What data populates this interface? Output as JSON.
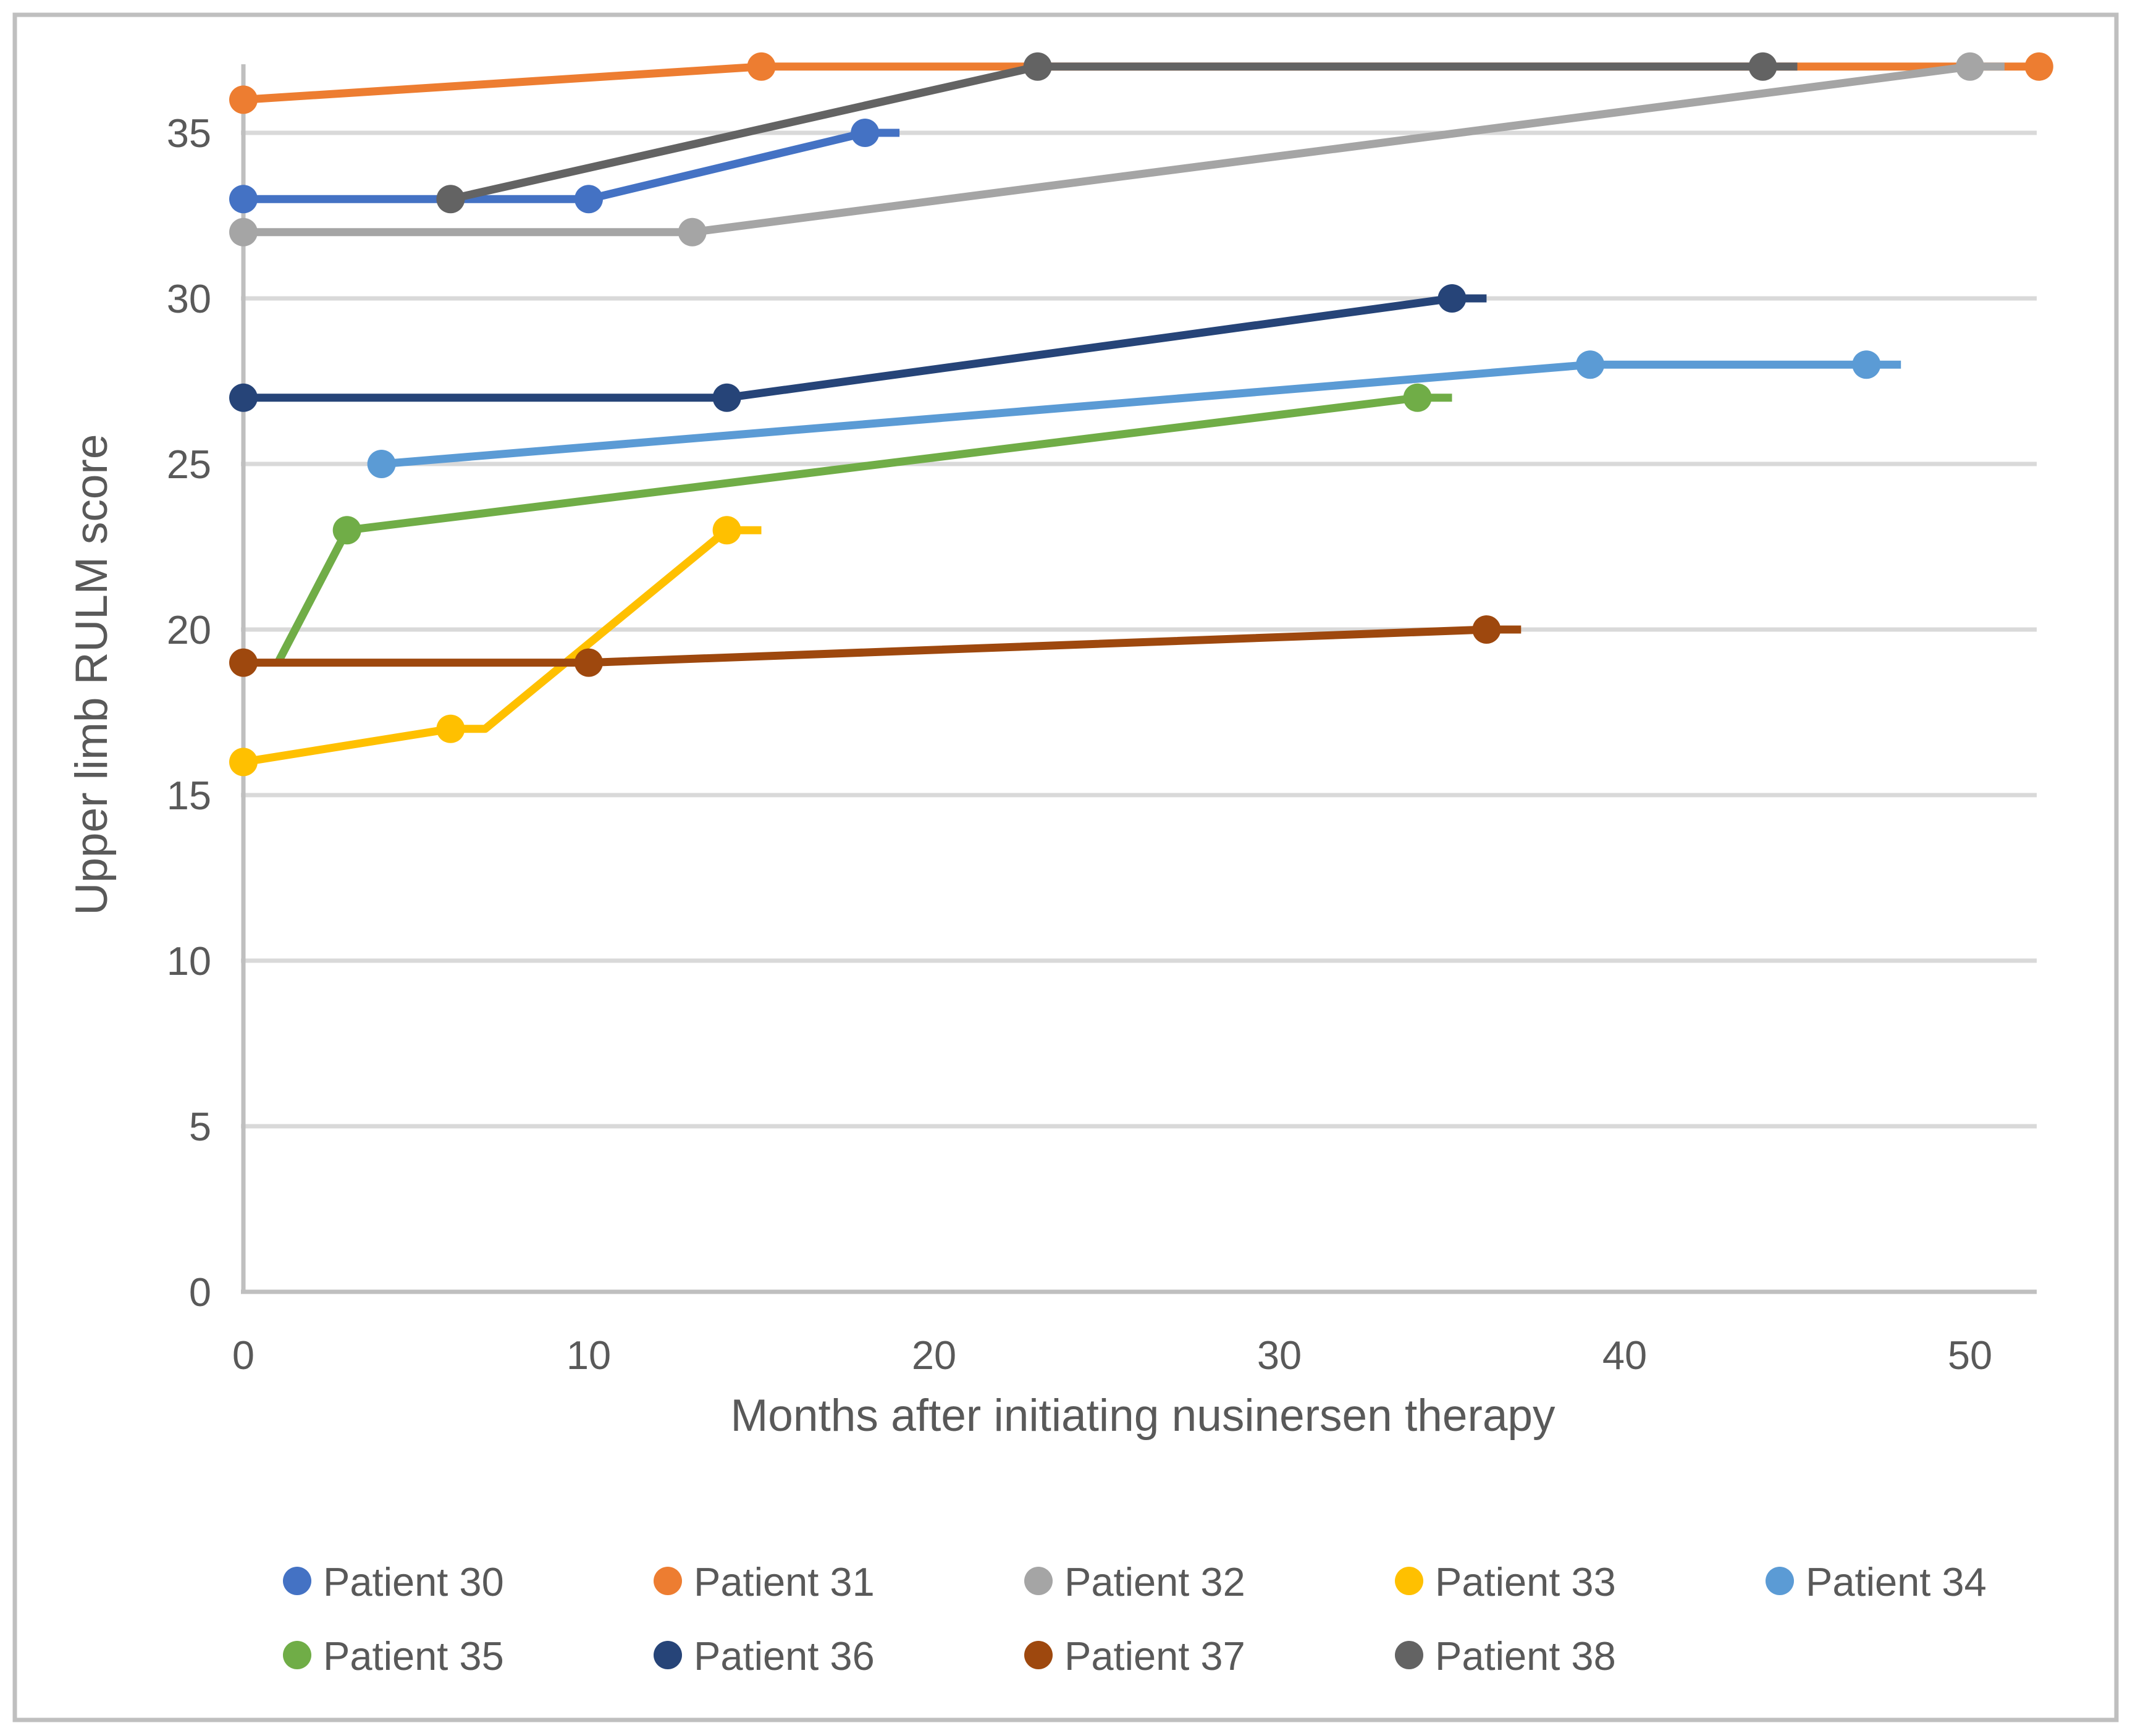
{
  "chart_data": {
    "type": "line",
    "title": "",
    "xlabel": "Months after initiating nusinersen therapy",
    "ylabel": "Upper limb RULM score",
    "xlim": [
      0,
      52
    ],
    "ylim": [
      0,
      37
    ],
    "x_ticks": [
      0,
      10,
      20,
      30,
      40,
      50
    ],
    "y_ticks": [
      0,
      5,
      10,
      15,
      20,
      25,
      30,
      35
    ],
    "grid": "horizontal",
    "legend_position": "bottom",
    "series": [
      {
        "name": "Patient 30",
        "color": "#4472C4",
        "points": [
          [
            0,
            33
          ],
          [
            10,
            33
          ],
          [
            18,
            35
          ],
          [
            19,
            35
          ]
        ],
        "marker_points": [
          [
            0,
            33
          ],
          [
            10,
            33
          ],
          [
            18,
            35
          ]
        ]
      },
      {
        "name": "Patient 31",
        "color": "#ED7D31",
        "points": [
          [
            0,
            36
          ],
          [
            15,
            37
          ],
          [
            52,
            37
          ]
        ],
        "marker_points": [
          [
            0,
            36
          ],
          [
            15,
            37
          ],
          [
            52,
            37
          ]
        ]
      },
      {
        "name": "Patient 32",
        "color": "#A5A5A5",
        "points": [
          [
            0,
            32
          ],
          [
            13,
            32
          ],
          [
            50,
            37
          ],
          [
            51,
            37
          ]
        ],
        "marker_points": [
          [
            0,
            32
          ],
          [
            13,
            32
          ],
          [
            50,
            37
          ]
        ]
      },
      {
        "name": "Patient 33",
        "color": "#FFC000",
        "points": [
          [
            0,
            16
          ],
          [
            6,
            17
          ],
          [
            7,
            17
          ],
          [
            14,
            23
          ],
          [
            15,
            23
          ]
        ],
        "marker_points": [
          [
            0,
            16
          ],
          [
            6,
            17
          ],
          [
            14,
            23
          ]
        ]
      },
      {
        "name": "Patient 34",
        "color": "#5B9BD5",
        "points": [
          [
            4,
            25
          ],
          [
            39,
            28
          ],
          [
            47,
            28
          ],
          [
            48,
            28
          ]
        ],
        "marker_points": [
          [
            4,
            25
          ],
          [
            39,
            28
          ],
          [
            47,
            28
          ]
        ]
      },
      {
        "name": "Patient 35",
        "color": "#70AD47",
        "points": [
          [
            1,
            19
          ],
          [
            3,
            23
          ],
          [
            34,
            27
          ],
          [
            35,
            27
          ]
        ],
        "marker_points": [
          [
            3,
            23
          ],
          [
            34,
            27
          ]
        ]
      },
      {
        "name": "Patient 36",
        "color": "#264478",
        "points": [
          [
            0,
            27
          ],
          [
            14,
            27
          ],
          [
            35,
            30
          ],
          [
            36,
            30
          ]
        ],
        "marker_points": [
          [
            0,
            27
          ],
          [
            14,
            27
          ],
          [
            35,
            30
          ]
        ]
      },
      {
        "name": "Patient 37",
        "color": "#9E480E",
        "points": [
          [
            0,
            19
          ],
          [
            10,
            19
          ],
          [
            36,
            20
          ],
          [
            37,
            20
          ]
        ],
        "marker_points": [
          [
            0,
            19
          ],
          [
            10,
            19
          ],
          [
            36,
            20
          ]
        ]
      },
      {
        "name": "Patient 38",
        "color": "#636363",
        "points": [
          [
            6,
            33
          ],
          [
            23,
            37
          ],
          [
            44,
            37
          ],
          [
            45,
            37
          ]
        ],
        "marker_points": [
          [
            6,
            33
          ],
          [
            23,
            37
          ],
          [
            44,
            37
          ]
        ]
      }
    ],
    "legend_rows": [
      [
        "Patient 30",
        "Patient 31",
        "Patient 32",
        "Patient 33",
        "Patient 34"
      ],
      [
        "Patient 35",
        "Patient 36",
        "Patient 37",
        "Patient 38"
      ]
    ]
  },
  "palette": {
    "background": "#FFFFFF",
    "chart_border": "#BFBFBF",
    "axis_line": "#BFBFBF",
    "gridline": "#D9D9D9",
    "tick_text": "#595959",
    "axis_title_text": "#595959",
    "legend_text": "#595959"
  }
}
